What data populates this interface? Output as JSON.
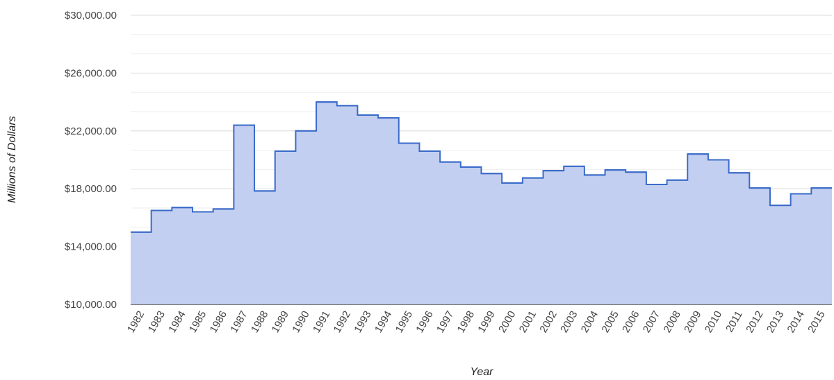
{
  "chart_data": {
    "type": "area",
    "step": true,
    "title": "",
    "xlabel": "Year",
    "ylabel": "Millions of Dollars",
    "ylim": [
      10000,
      30000
    ],
    "y_ticks": [
      "$10,000.00",
      "$14,000.00",
      "$18,000.00",
      "$22,000.00",
      "$26,000.00",
      "$30,000.00"
    ],
    "y_tick_values": [
      10000,
      14000,
      18000,
      22000,
      26000,
      30000
    ],
    "minor_grid_step": 1333.33,
    "grid": true,
    "legend": "none",
    "colors": {
      "line": "#3a6bc9",
      "fill": "#c3cff0",
      "grid": "#dddddd",
      "minor_grid": "#eeeeee",
      "baseline": "#333333"
    },
    "categories": [
      "1982",
      "1983",
      "1984",
      "1985",
      "1986",
      "1987",
      "1988",
      "1989",
      "1990",
      "1991",
      "1992",
      "1993",
      "1994",
      "1995",
      "1996",
      "1997",
      "1998",
      "1999",
      "2000",
      "2001",
      "2002",
      "2003",
      "2004",
      "2005",
      "2006",
      "2007",
      "2008",
      "2009",
      "2010",
      "2011",
      "2012",
      "2013",
      "2014",
      "2015"
    ],
    "series": [
      {
        "values": [
          15000,
          16500,
          16700,
          16400,
          16600,
          22400,
          17850,
          20600,
          22000,
          24000,
          23750,
          23100,
          22900,
          21150,
          20600,
          19850,
          19500,
          19050,
          18400,
          18750,
          19250,
          19550,
          18950,
          19300,
          19150,
          18300,
          18600,
          20400,
          20000,
          19100,
          18050,
          16850,
          17650,
          18050
        ]
      }
    ]
  }
}
